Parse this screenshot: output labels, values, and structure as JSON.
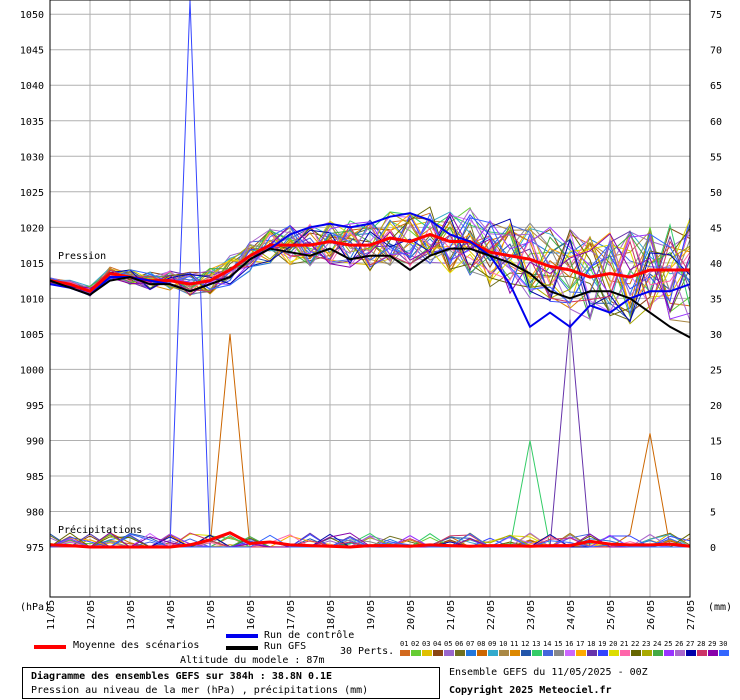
{
  "chart_data": {
    "type": "line",
    "y_left_unit": "(hPa)",
    "y_right_unit": "(mm)",
    "y_left_ticks": [
      1050,
      1045,
      1040,
      1035,
      1030,
      1025,
      1020,
      1015,
      1010,
      1005,
      1000,
      995,
      990,
      985,
      980,
      975
    ],
    "y_right_ticks": [
      75,
      70,
      65,
      60,
      55,
      50,
      45,
      40,
      35,
      30,
      25,
      20,
      15,
      10,
      5,
      0
    ],
    "x_ticks": [
      "11/05",
      "12/05",
      "13/05",
      "14/05",
      "15/05",
      "16/05",
      "17/05",
      "18/05",
      "19/05",
      "20/05",
      "21/05",
      "22/05",
      "23/05",
      "24/05",
      "25/05",
      "26/05",
      "27/05"
    ],
    "ylim_pressure": [
      975,
      1052
    ],
    "ylim_precip": [
      0,
      77
    ],
    "annotations": {
      "pressure": "Pression",
      "precip": "Précipitations"
    },
    "grid": true,
    "series": [
      {
        "name": "Moyenne des scénarios",
        "color": "#ff0000",
        "kind": "pressure",
        "x": [
          0,
          0.5,
          1,
          1.5,
          2,
          2.5,
          3,
          3.5,
          4,
          4.5,
          5,
          5.5,
          6,
          6.5,
          7,
          7.5,
          8,
          8.5,
          9,
          9.5,
          10,
          10.5,
          11,
          11.5,
          12,
          12.5,
          13,
          13.5,
          14,
          14.5,
          15,
          15.5,
          16
        ],
        "values": [
          1012.5,
          1012,
          1011,
          1013.5,
          1013,
          1012.5,
          1012.5,
          1012,
          1012.5,
          1014,
          1016,
          1017.5,
          1017.5,
          1017.5,
          1018,
          1017.5,
          1017.5,
          1018.5,
          1018,
          1019,
          1018,
          1018,
          1016.5,
          1016,
          1015.5,
          1014.5,
          1014,
          1013,
          1013.5,
          1013,
          1014,
          1014,
          1014
        ]
      },
      {
        "name": "Run de contrôle",
        "color": "#0000ee",
        "kind": "pressure",
        "x": [
          0,
          0.5,
          1,
          1.5,
          2,
          2.5,
          3,
          3.5,
          4,
          4.5,
          5,
          5.5,
          6,
          6.5,
          7,
          7.5,
          8,
          8.5,
          9,
          9.5,
          10,
          10.5,
          11,
          11.5,
          12,
          12.5,
          13,
          13.5,
          14,
          14.5,
          15,
          15.5,
          16
        ],
        "values": [
          1012,
          1011.5,
          1010.5,
          1013,
          1013,
          1012.5,
          1012,
          1011,
          1012,
          1013,
          1015.5,
          1017,
          1019,
          1020,
          1020.5,
          1020,
          1020.5,
          1021.5,
          1022,
          1021,
          1019,
          1018,
          1016,
          1012,
          1006,
          1008,
          1006,
          1009,
          1008,
          1010,
          1011,
          1011,
          1012
        ]
      },
      {
        "name": "Run GFS",
        "color": "#000000",
        "kind": "pressure",
        "x": [
          0,
          0.5,
          1,
          1.5,
          2,
          2.5,
          3,
          3.5,
          4,
          4.5,
          5,
          5.5,
          6,
          6.5,
          7,
          7.5,
          8,
          8.5,
          9,
          9.5,
          10,
          10.5,
          11,
          11.5,
          12,
          12.5,
          13,
          13.5,
          14,
          14.5,
          15,
          15.5,
          16
        ],
        "values": [
          1012.5,
          1011.5,
          1010.5,
          1012.5,
          1013,
          1012,
          1012,
          1011,
          1012,
          1013,
          1015.5,
          1017,
          1016.5,
          1016,
          1017,
          1015.5,
          1016,
          1016,
          1014,
          1016,
          1017,
          1017,
          1016,
          1015,
          1013.5,
          1011,
          1010,
          1011,
          1011,
          1010,
          1008,
          1006,
          1004.5
        ]
      },
      {
        "name": "Moyenne des scénarios",
        "color": "#ff0000",
        "kind": "precip",
        "x": [
          0,
          0.5,
          1,
          1.5,
          2,
          2.5,
          3,
          3.5,
          4,
          4.5,
          5,
          5.5,
          6,
          6.5,
          7,
          7.5,
          8,
          8.5,
          9,
          9.5,
          10,
          10.5,
          11,
          11.5,
          12,
          12.5,
          13,
          13.5,
          14,
          14.5,
          15,
          15.5,
          16
        ],
        "values": [
          0.3,
          0.2,
          0,
          0,
          0,
          0,
          0,
          0.3,
          1,
          2,
          0.5,
          0.7,
          0.3,
          0.2,
          0.1,
          0,
          0.2,
          0.2,
          0.1,
          0.3,
          0.2,
          0.1,
          0.2,
          0.2,
          0.1,
          0.2,
          0.2,
          0.8,
          0.4,
          0.3,
          0.3,
          0.4,
          0.1
        ]
      }
    ],
    "ensemble_legend": {
      "count_label": "30 Perts.",
      "numbers": [
        "01",
        "02",
        "03",
        "04",
        "05",
        "06",
        "07",
        "08",
        "09",
        "10",
        "11",
        "12",
        "13",
        "14",
        "15",
        "16",
        "17",
        "18",
        "19",
        "20",
        "21",
        "22",
        "23",
        "24",
        "25",
        "26",
        "27",
        "28",
        "29",
        "30"
      ],
      "colors": [
        "#d2691e",
        "#66cc33",
        "#e0c000",
        "#8b4513",
        "#9966cc",
        "#707020",
        "#2277dd",
        "#cc6600",
        "#33aacc",
        "#aa8844",
        "#dd8800",
        "#2255aa",
        "#33cc66",
        "#4466dd",
        "#888888",
        "#cc66ff",
        "#ffaa00",
        "#6633aa",
        "#3344ff",
        "#dddd00",
        "#ff66aa",
        "#666600",
        "#aaaa00",
        "#44aa44",
        "#9933ff",
        "#aa66cc",
        "#0000aa",
        "#cc3366",
        "#8800aa",
        "#3366ff"
      ]
    }
  },
  "legend": {
    "mean": "Moyenne des scénarios",
    "control": "Run de contrôle",
    "gfs": "Run GFS",
    "perts": "30 Perts.",
    "altitude": "Altitude du modele : 87m"
  },
  "info": {
    "title": "Diagramme des ensembles GEFS sur 384h : 38.8N 0.1E",
    "subtitle": "Pression au niveau de la mer (hPa) , précipitations (mm)",
    "ensemble": "Ensemble GEFS du 11/05/2025 - 00Z",
    "copyright": "Copyright 2025 Meteociel.fr"
  }
}
